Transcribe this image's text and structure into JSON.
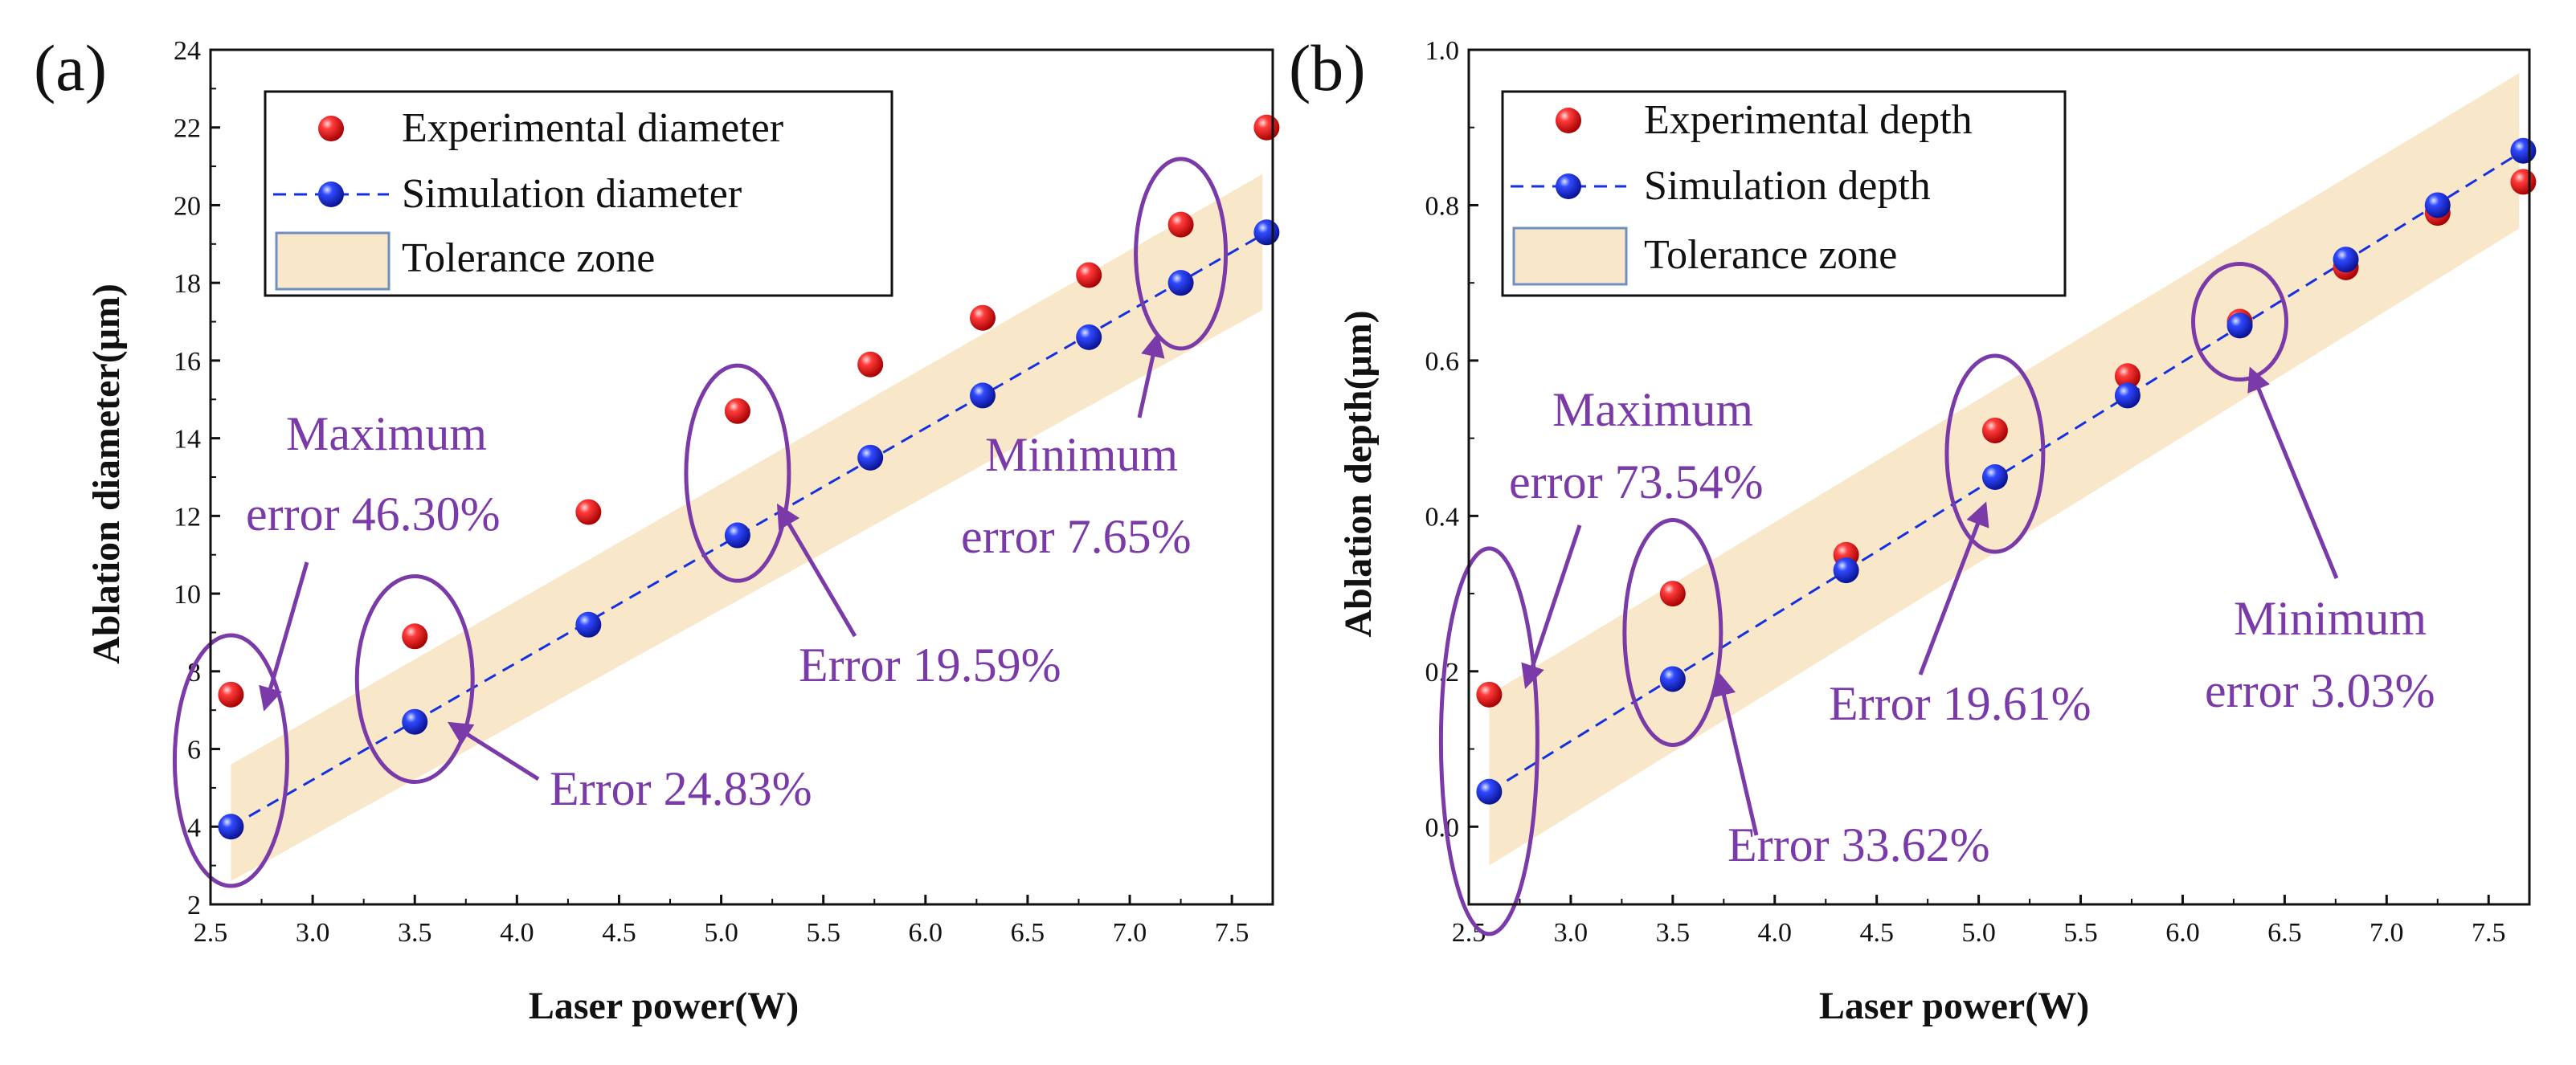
{
  "chart_data": [
    {
      "type": "scatter",
      "panel_label": "(a)",
      "xlabel": "Laser power(W)",
      "ylabel": "Ablation diameter(μm)",
      "xlim": [
        2.5,
        7.7
      ],
      "ylim": [
        2,
        24
      ],
      "xticks": [
        "2.5",
        "3.0",
        "3.5",
        "4.0",
        "4.5",
        "5.0",
        "5.5",
        "6.0",
        "6.5",
        "7.0",
        "7.5"
      ],
      "yticks": [
        "2",
        "4",
        "6",
        "8",
        "10",
        "12",
        "14",
        "16",
        "18",
        "20",
        "22",
        "24"
      ],
      "tolerance_zone": {
        "x": [
          2.6,
          7.65
        ],
        "lower": [
          2.6,
          17.3
        ],
        "upper": [
          5.6,
          20.8
        ]
      },
      "series": [
        {
          "name": "Experimental diameter",
          "color": "#e8141c",
          "x": [
            2.6,
            3.5,
            4.35,
            5.08,
            5.73,
            6.28,
            6.8,
            7.25,
            7.67
          ],
          "y": [
            7.4,
            8.9,
            12.1,
            14.7,
            15.9,
            17.1,
            18.2,
            19.5,
            22.0
          ]
        },
        {
          "name": "Simulation diameter",
          "color": "#1430e0",
          "line": "dashed",
          "x": [
            2.6,
            3.5,
            4.35,
            5.08,
            5.73,
            6.28,
            6.8,
            7.25,
            7.67
          ],
          "y": [
            4.0,
            6.7,
            9.2,
            11.5,
            13.5,
            15.1,
            16.6,
            18.0,
            19.3
          ]
        }
      ],
      "legend": [
        "Experimental diameter",
        "Simulation diameter",
        "Tolerance zone"
      ],
      "annotations": [
        {
          "lines": [
            "Maximum",
            "error 46.30%"
          ],
          "ellipse": {
            "cx": 2.6,
            "cy": 5.7
          }
        },
        {
          "lines": [
            "Error 24.83%"
          ],
          "ellipse": {
            "cx": 3.5,
            "cy": 7.8
          }
        },
        {
          "lines": [
            "Error 19.59%"
          ],
          "ellipse": {
            "cx": 5.08,
            "cy": 13.1
          }
        },
        {
          "lines": [
            "Minimum",
            "error 7.65%"
          ],
          "ellipse": {
            "cx": 7.25,
            "cy": 18.75
          }
        }
      ]
    },
    {
      "type": "scatter",
      "panel_label": "(b)",
      "xlabel": "Laser power(W)",
      "ylabel": "Ablation depth(μm)",
      "xlim": [
        2.5,
        7.7
      ],
      "ylim": [
        -0.1,
        1.0
      ],
      "xticks": [
        "2.5",
        "3.0",
        "3.5",
        "4.0",
        "4.5",
        "5.0",
        "5.5",
        "6.0",
        "6.5",
        "7.0",
        "7.5"
      ],
      "yticks": [
        "0.0",
        "0.2",
        "0.4",
        "0.6",
        "0.8",
        "1.0"
      ],
      "tolerance_zone": {
        "x": [
          2.6,
          7.65
        ],
        "lower": [
          -0.05,
          0.77
        ],
        "upper": [
          0.17,
          0.97
        ]
      },
      "series": [
        {
          "name": "Experimental depth",
          "color": "#e8141c",
          "x": [
            2.6,
            3.5,
            4.35,
            5.08,
            5.73,
            6.28,
            6.8,
            7.25,
            7.67
          ],
          "y": [
            0.17,
            0.3,
            0.35,
            0.51,
            0.58,
            0.65,
            0.72,
            0.79,
            0.83
          ]
        },
        {
          "name": "Simulation depth",
          "color": "#1430e0",
          "line": "dashed",
          "x": [
            2.6,
            3.5,
            4.35,
            5.08,
            5.73,
            6.28,
            6.8,
            7.25,
            7.67
          ],
          "y": [
            0.045,
            0.19,
            0.33,
            0.45,
            0.555,
            0.645,
            0.73,
            0.8,
            0.87
          ]
        }
      ],
      "legend": [
        "Experimental depth",
        "Simulation depth",
        "Tolerance zone"
      ],
      "annotations": [
        {
          "lines": [
            "Maximum",
            "error 73.54%"
          ],
          "ellipse": {
            "cx": 2.6,
            "cy": 0.11
          }
        },
        {
          "lines": [
            "Error 33.62%"
          ],
          "ellipse": {
            "cx": 3.5,
            "cy": 0.25
          }
        },
        {
          "lines": [
            "Error 19.61%"
          ],
          "ellipse": {
            "cx": 5.08,
            "cy": 0.48
          }
        },
        {
          "lines": [
            "Minimum",
            "error 3.03%"
          ],
          "ellipse": {
            "cx": 6.28,
            "cy": 0.65
          }
        }
      ]
    }
  ]
}
